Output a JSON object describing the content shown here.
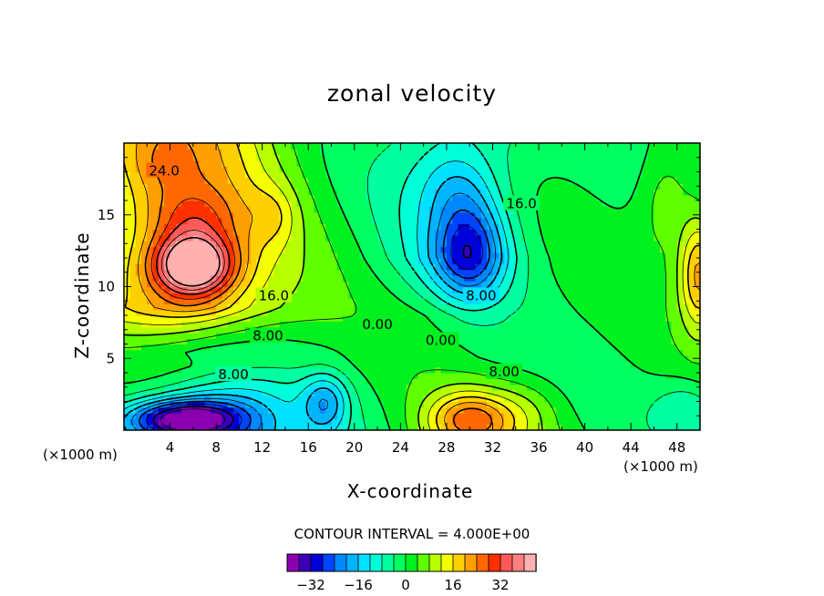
{
  "chart_data": {
    "type": "heatmap",
    "title": "zonal velocity",
    "xlabel": "X-coordinate",
    "ylabel": "Z-coordinate",
    "x_unit_left": "(×1000 m)",
    "x_unit_right": "(×1000 m)",
    "xlim": [
      0,
      50
    ],
    "ylim": [
      0,
      20
    ],
    "x_ticks": [
      "4",
      "8",
      "12",
      "16",
      "20",
      "24",
      "28",
      "32",
      "36",
      "40",
      "44",
      "48"
    ],
    "y_ticks": [
      "5",
      "10",
      "15"
    ],
    "contour_interval_text": "CONTOUR INTERVAL = 4.000E+00",
    "contour_labels": [
      {
        "text": "24.0",
        "x": 3.5,
        "z": 18.0
      },
      {
        "text": "16.0",
        "x": 13.0,
        "z": 9.3
      },
      {
        "text": "8.00",
        "x": 12.5,
        "z": 6.5
      },
      {
        "text": "8.00",
        "x": 9.5,
        "z": 3.8
      },
      {
        "text": "0.00",
        "x": 22.0,
        "z": 7.3
      },
      {
        "text": "0.00",
        "x": 27.5,
        "z": 6.2
      },
      {
        "text": "8.00",
        "x": 31.0,
        "z": 9.3
      },
      {
        "text": "16.0",
        "x": 34.5,
        "z": 15.7
      },
      {
        "text": "8.00",
        "x": 33.0,
        "z": 4.0
      }
    ],
    "field_features": [
      {
        "x": 6,
        "z": 11.5,
        "value": 36,
        "sx": 3.5,
        "sz": 2.2
      },
      {
        "x": 6,
        "z": 15,
        "value": 8,
        "sx": 4,
        "sz": 2
      },
      {
        "x": 3,
        "z": 18.5,
        "value": 4,
        "sx": 3,
        "sz": 2
      },
      {
        "x": 5.5,
        "z": 0.8,
        "value": -34,
        "sx": 5,
        "sz": 1.3
      },
      {
        "x": 9.5,
        "z": 2.5,
        "value": -4,
        "sx": 5,
        "sz": 1.5
      },
      {
        "x": 30,
        "z": 12.5,
        "value": -20,
        "sx": 3,
        "sz": 3.5
      },
      {
        "x": 29,
        "z": 17,
        "value": -6,
        "sx": 3,
        "sz": 2.5
      },
      {
        "x": 30,
        "z": 0.8,
        "value": 18,
        "sx": 3.5,
        "sz": 1.8
      },
      {
        "x": 35,
        "z": 1.5,
        "value": 4,
        "sx": 3,
        "sz": 2
      },
      {
        "x": 50,
        "z": 11,
        "value": 22,
        "sx": 1.8,
        "sz": 4
      },
      {
        "x": 47,
        "z": 16,
        "value": 8,
        "sx": 2.5,
        "sz": 4
      },
      {
        "x": 49,
        "z": 1.5,
        "value": -8,
        "sx": 3,
        "sz": 2
      },
      {
        "x": 17.5,
        "z": 2,
        "value": -14,
        "sx": 2,
        "sz": 2
      },
      {
        "x": 13,
        "z": 15,
        "value": 6,
        "sx": 2,
        "sz": 2
      }
    ],
    "colorbar": {
      "colors": [
        "#8a00b0",
        "#3a00b8",
        "#0000d8",
        "#0044ff",
        "#0088ff",
        "#00b4ff",
        "#00e0ff",
        "#00ffd8",
        "#00ffa0",
        "#00ff60",
        "#00f020",
        "#60ff00",
        "#b8ff00",
        "#f4ff00",
        "#ffd000",
        "#ffa000",
        "#ff6800",
        "#ff3000",
        "#ff5a5a",
        "#ff8080",
        "#ffb0b0"
      ],
      "tick_labels": [
        "−32",
        "−16",
        "0",
        "16",
        "32"
      ],
      "tick_values": [
        -32,
        -16,
        0,
        16,
        32
      ],
      "min": -40,
      "max": 44
    }
  }
}
